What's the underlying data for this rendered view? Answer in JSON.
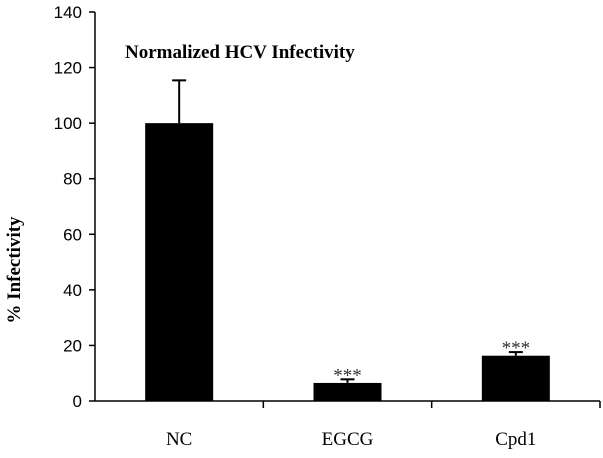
{
  "chart_data": {
    "type": "bar",
    "title": "Normalized HCV Infectivity",
    "xlabel": "",
    "ylabel": "% Infectivity",
    "ylim": [
      0,
      140
    ],
    "yticks": [
      0,
      20,
      40,
      60,
      80,
      100,
      120,
      140
    ],
    "ytick_labels": [
      "0",
      "20",
      "40",
      "60",
      "80",
      "100",
      "120",
      "140"
    ],
    "categories": [
      "NC",
      "EGCG",
      "Cpd1"
    ],
    "values": [
      100,
      6.5,
      16.3
    ],
    "error_upper": [
      115.4,
      7.8,
      17.6
    ],
    "annotations": [
      "",
      "***",
      "***"
    ],
    "bar_color": "#000000",
    "grid": false,
    "legend": "none"
  }
}
